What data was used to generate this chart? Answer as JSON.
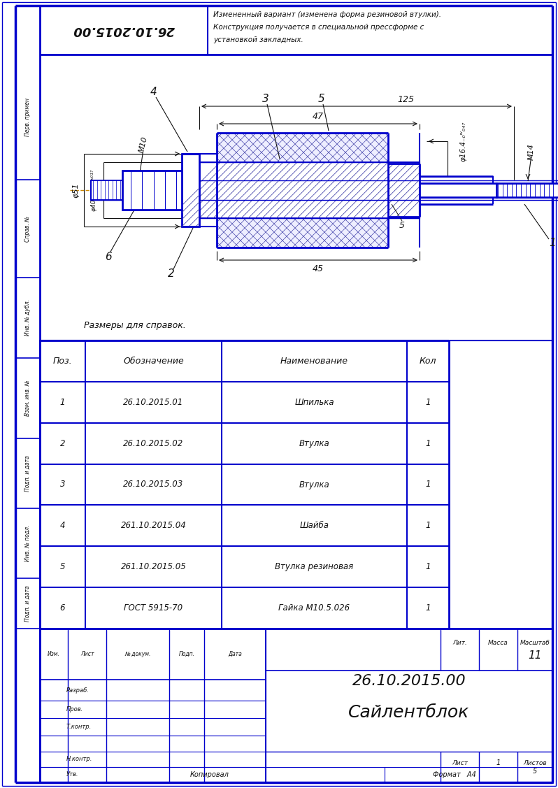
{
  "bg_color": "#c8c8d8",
  "page_color": "white",
  "blue": "#0000cc",
  "dark_blue": "#0000aa",
  "black": "#111111",
  "orange": "#cc8800",
  "hatch_color": "#4444aa",
  "title_stamp": "26.10.2015.00",
  "drawing_number": "26.10.2015.00",
  "part_name": "Сайлентблок",
  "revision_text_line1": "Измененный вариант (изменена форма резиновой втулки).",
  "revision_text_line2": "Конструкция получается в специальной прессформе с",
  "revision_text_line3": "установкой закладных.",
  "ref_text": "Размеры для справок.",
  "table_headers": [
    "Поз.",
    "Обозначение",
    "Наименование",
    "Кол"
  ],
  "table_rows": [
    [
      "1",
      "26.10.2015.01",
      "Шпилька",
      "1"
    ],
    [
      "2",
      "26.10.2015.02",
      "Втулка",
      "1"
    ],
    [
      "3",
      "26.10.2015.03",
      "Втулка",
      "1"
    ],
    [
      "4",
      "261.10.2015.04",
      "Шайба",
      "1"
    ],
    [
      "5",
      "261.10.2015.05",
      "Втулка резиновая",
      "1"
    ],
    [
      "6",
      "ГОСТ 5915-70",
      "Гайка М10.5.026",
      "1"
    ]
  ],
  "stamp_izm": "Изм.",
  "stamp_list": "Лист",
  "stamp_no_doc": "№ докум.",
  "stamp_podp": "Подп.",
  "stamp_data": "Дата",
  "stamp_razrab": "Разраб.",
  "stamp_prov": "Пров.",
  "stamp_t_contr": "Т.контр.",
  "stamp_n_contr": "Н.контр.",
  "stamp_utv": "Утв.",
  "stamp_lit": "Лит.",
  "stamp_massa": "Масса",
  "stamp_masshtab": "Масштаб",
  "stamp_list_n": "Лист",
  "stamp_listov": "Листов",
  "stamp_format": "Формат",
  "stamp_kopirov": "Копировал",
  "stamp_perev": "Перв. примен",
  "stamp_sprav": "Справ. №",
  "stamp_inv_dubl": "Инв. № дубл.",
  "stamp_vzam_inv": "Взам. инв. №",
  "stamp_podp_data1": "Подп. и дата",
  "stamp_inv_podl": "Инв. № подл.",
  "stamp_podp_data2": "Подп. и дата",
  "masshtab_val": "11",
  "list_val": "1",
  "listov_val": "5",
  "format_val": "A4"
}
